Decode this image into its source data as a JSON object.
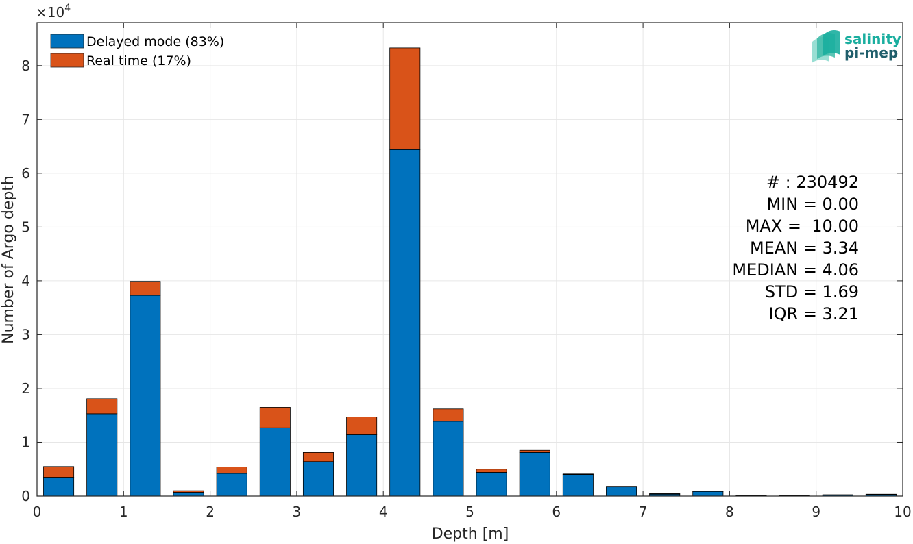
{
  "chart_data": {
    "type": "bar",
    "stacked": true,
    "xlabel": "Depth [m]",
    "ylabel": "Number of Argo depth",
    "y_multiplier_label": "×10",
    "y_multiplier_exponent": "4",
    "xlim": [
      0,
      10
    ],
    "ylim": [
      0,
      88000
    ],
    "xticks": [
      0,
      1,
      2,
      3,
      4,
      5,
      6,
      7,
      8,
      9,
      10
    ],
    "yticks": [
      0,
      10000,
      20000,
      30000,
      40000,
      50000,
      60000,
      70000,
      80000
    ],
    "ytick_labels": [
      "0",
      "1",
      "2",
      "3",
      "4",
      "5",
      "6",
      "7",
      "8"
    ],
    "grid": true,
    "legend_position": "top-left",
    "bin_centers": [
      0.25,
      0.75,
      1.25,
      1.75,
      2.25,
      2.75,
      3.25,
      3.75,
      4.25,
      4.75,
      5.25,
      5.75,
      6.25,
      6.75,
      7.25,
      7.75,
      8.25,
      8.75,
      9.25,
      9.75
    ],
    "series": [
      {
        "name": "Delayed mode (83%)",
        "color": "#0072BD",
        "values": [
          3500,
          15300,
          37300,
          700,
          4200,
          12700,
          6400,
          11400,
          64400,
          13900,
          4400,
          8100,
          4000,
          1700,
          400,
          900,
          150,
          150,
          200,
          300
        ]
      },
      {
        "name": "Real time (17%)",
        "color": "#D95319",
        "values": [
          2000,
          2800,
          2600,
          300,
          1200,
          3800,
          1700,
          3300,
          18900,
          2300,
          600,
          400,
          100,
          0,
          50,
          50,
          50,
          50,
          50,
          50
        ]
      }
    ],
    "stats": [
      "# : 230492",
      "MIN = 0.00",
      "MAX =  10.00",
      "MEAN = 3.34",
      "MEDIAN = 4.06",
      "STD = 1.69",
      "IQR = 3.21"
    ]
  },
  "logo": {
    "line1": "salinity",
    "line2": "pi-mep",
    "color1": "#1AAE9F",
    "color2": "#1F5E6B"
  }
}
